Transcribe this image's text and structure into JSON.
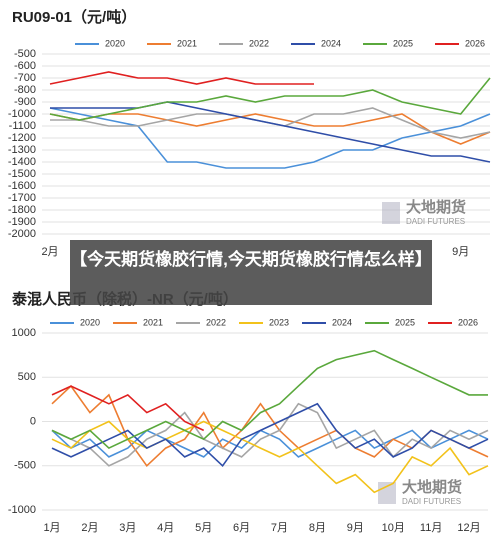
{
  "caption": "【今天期货橡胶行情,今天期货橡胶行情怎么样】",
  "chart_data": [
    {
      "type": "line",
      "title": "RU09-01（元/吨）",
      "watermark": "大地期货",
      "watermark_sub": "DADI FUTURES",
      "categories": [
        "2月",
        null,
        null,
        null,
        null,
        null,
        null,
        null,
        null,
        null,
        null,
        null,
        null,
        null,
        "9月",
        null
      ],
      "ylim": [
        -2000,
        -500
      ],
      "yticks": [
        -500,
        -600,
        -700,
        -800,
        -900,
        -1000,
        -1100,
        -1200,
        -1300,
        -1400,
        -1500,
        -1600,
        -1700,
        -1800,
        -1900,
        -2000
      ],
      "grid": true,
      "series": [
        {
          "name": "2020",
          "color": "#4a90d9",
          "values": [
            -950,
            -1000,
            -1050,
            -1100,
            -1400,
            -1400,
            -1450,
            -1450,
            -1450,
            -1400,
            -1300,
            -1300,
            -1200,
            -1150,
            -1100,
            -1000
          ]
        },
        {
          "name": "2021",
          "color": "#ed7d31",
          "values": [
            -1000,
            -1050,
            -1000,
            -1000,
            -1050,
            -1100,
            -1050,
            -1000,
            -1050,
            -1100,
            -1100,
            -1050,
            -1000,
            -1150,
            -1250,
            -1150
          ]
        },
        {
          "name": "2022",
          "color": "#a5a5a5",
          "values": [
            -1050,
            -1050,
            -1100,
            -1100,
            -1050,
            -1000,
            -1000,
            -1050,
            -1100,
            -1000,
            -1000,
            -950,
            -1050,
            -1150,
            -1200,
            -1150
          ]
        },
        {
          "name": "2024",
          "color": "#2f4ea8",
          "values": [
            -950,
            -950,
            -950,
            -950,
            -900,
            -950,
            -1000,
            -1050,
            -1100,
            -1150,
            -1200,
            -1250,
            -1300,
            -1350,
            -1350,
            -1400
          ]
        },
        {
          "name": "2025",
          "color": "#5aa83c",
          "values": [
            -1000,
            -1050,
            -1000,
            -950,
            -900,
            -900,
            -850,
            -900,
            -850,
            -850,
            -850,
            -800,
            -900,
            -950,
            -1000,
            -700
          ]
        },
        {
          "name": "2026",
          "color": "#e02020",
          "values": [
            -750,
            -700,
            -650,
            -700,
            -700,
            -750,
            -700,
            -750,
            -750,
            -750,
            null,
            null,
            null,
            null,
            null,
            null
          ]
        }
      ]
    },
    {
      "type": "line",
      "title": "泰混人民币（除税）-NR（元/吨）",
      "watermark": "大地期货",
      "watermark_sub": "DADI FUTURES",
      "categories": [
        "1月",
        null,
        "2月",
        null,
        "3月",
        null,
        "4月",
        null,
        "5月",
        null,
        "6月",
        null,
        "7月",
        null,
        "8月",
        null,
        "9月",
        null,
        "10月",
        null,
        "11月",
        null,
        "12月",
        null
      ],
      "ylim": [
        -1000,
        1000
      ],
      "yticks": [
        1000,
        500,
        0,
        -500,
        -1000
      ],
      "grid": true,
      "series": [
        {
          "name": "2020",
          "color": "#4a90d9",
          "values": [
            -100,
            -300,
            -200,
            -400,
            -300,
            -100,
            -200,
            -300,
            -400,
            -200,
            -300,
            -100,
            -200,
            -400,
            -300,
            -200,
            -100,
            -300,
            -200,
            -100,
            -300,
            -200,
            -100,
            -200
          ]
        },
        {
          "name": "2021",
          "color": "#ed7d31",
          "values": [
            200,
            400,
            100,
            300,
            -200,
            -500,
            -300,
            -200,
            100,
            -300,
            -100,
            200,
            -100,
            -300,
            -200,
            -100,
            -300,
            -400,
            -200,
            -300,
            -100,
            -200,
            -300,
            -400
          ]
        },
        {
          "name": "2022",
          "color": "#a5a5a5",
          "values": [
            -100,
            -200,
            -300,
            -500,
            -400,
            -200,
            -100,
            100,
            -200,
            -300,
            -400,
            -200,
            -100,
            200,
            100,
            -300,
            -200,
            -100,
            -400,
            -200,
            -300,
            -100,
            -200,
            -100
          ]
        },
        {
          "name": "2023",
          "color": "#f2c21b",
          "values": [
            -200,
            -300,
            -100,
            0,
            -200,
            -300,
            -200,
            -100,
            0,
            -100,
            -200,
            -300,
            -400,
            -300,
            -500,
            -700,
            -600,
            -800,
            -700,
            -400,
            -500,
            -300,
            -600,
            -500
          ]
        },
        {
          "name": "2024",
          "color": "#2f4ea8",
          "values": [
            -300,
            -400,
            -300,
            -200,
            -100,
            -300,
            -200,
            -400,
            -300,
            -500,
            -200,
            -100,
            0,
            100,
            200,
            -100,
            -300,
            -200,
            -400,
            -300,
            -100,
            -200,
            -300,
            -200
          ]
        },
        {
          "name": "2025",
          "color": "#5aa83c",
          "values": [
            -100,
            -200,
            -100,
            -300,
            -200,
            -100,
            0,
            -100,
            -200,
            0,
            -100,
            100,
            200,
            400,
            600,
            700,
            750,
            800,
            700,
            600,
            500,
            400,
            300,
            300
          ]
        },
        {
          "name": "2026",
          "color": "#e02020",
          "values": [
            300,
            400,
            300,
            200,
            300,
            100,
            200,
            0,
            -100,
            null,
            null,
            null,
            null,
            null,
            null,
            null,
            null,
            null,
            null,
            null,
            null,
            null,
            null,
            null
          ]
        }
      ]
    }
  ]
}
